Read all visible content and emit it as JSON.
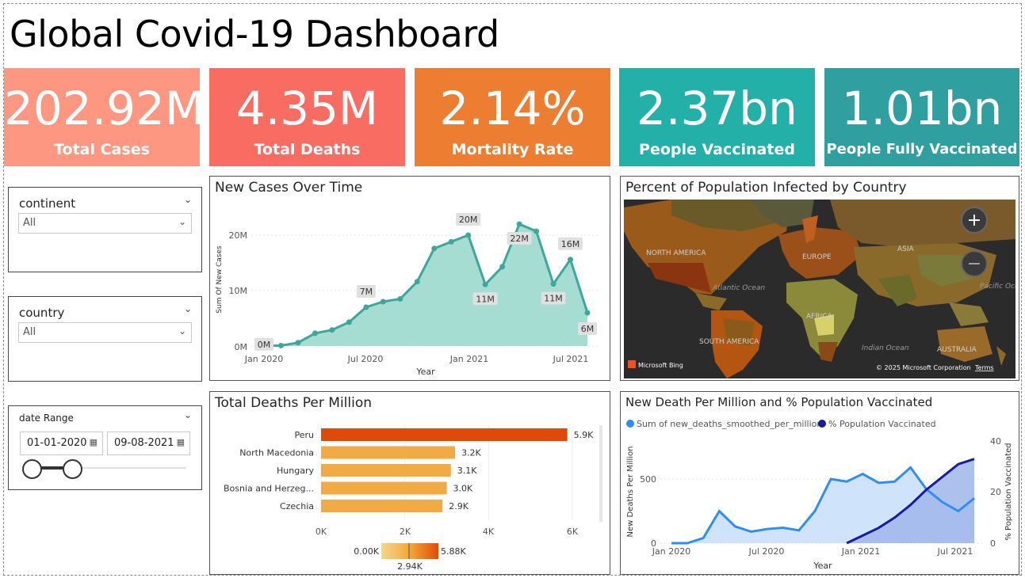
{
  "dashboard_title": "Global Covid-19 Dashboard",
  "kpis": [
    {
      "value": "202.92M",
      "label": "Total Cases",
      "color": "#fd9782"
    },
    {
      "value": "4.35M",
      "label": "Total Deaths",
      "color": "#f86c62"
    },
    {
      "value": "2.14%",
      "label": "Mortality Rate",
      "color": "#ed7d31"
    },
    {
      "value": "2.37bn",
      "label": "People Vaccinated",
      "color": "#23b0a8"
    },
    {
      "value": "1.01bn",
      "label": "People Fully Vaccinated",
      "color": "#2f9f9f"
    }
  ],
  "slicers": {
    "continent": {
      "label": "continent",
      "value": "All"
    },
    "country": {
      "label": "country",
      "value": "All"
    },
    "date_range": {
      "label": "date Range",
      "start": "01-01-2020",
      "end": "09-08-2021"
    }
  },
  "new_cases": {
    "title": "New Cases Over Time",
    "xlabel": "Year",
    "ylabel": "Sum Of New Cases",
    "xticks": [
      "Jan 2020",
      "Jul 2020",
      "Jan 2021",
      "Jul 2021"
    ],
    "yticks": [
      "0M",
      "10M",
      "20M"
    ]
  },
  "map": {
    "title": "Percent of Population Infected by Country",
    "labels": [
      "NORTH AMERICA",
      "EUROPE",
      "ASIA",
      "Atlantic Ocean",
      "AFRICA",
      "SOUTH AMERICA",
      "Indian Ocean",
      "AUSTRALIA",
      "Pacific Oce"
    ],
    "brand": "Microsoft Bing",
    "copyright": "© 2025 Microsoft Corporation",
    "terms": "Terms",
    "zoom_in": "+",
    "zoom_out": "−"
  },
  "deaths_per_million": {
    "title": "Total Deaths Per Million",
    "xticks": [
      "0K",
      "2K",
      "4K",
      "6K"
    ],
    "legend_min": "0.00K",
    "legend_mid": "2.94K",
    "legend_max": "5.88K"
  },
  "death_vax": {
    "title": "New Death Per Million and % Population Vaccinated",
    "legend": [
      {
        "name": "Sum of new_deaths_smoothed_per_million",
        "color": "#2f8ef0"
      },
      {
        "name": "% Population Vaccinated",
        "color": "#1a1a9c"
      }
    ],
    "xlabel": "Year",
    "ylabel_left": "New Deaths Per Million",
    "ylabel_right": "% Population Vaccinated",
    "xticks": [
      "Jan 2020",
      "Jul 2020",
      "Jan 2021",
      "Jul 2021"
    ],
    "yticks_left": [
      "0",
      "500"
    ],
    "yticks_right": [
      "0",
      "20",
      "40"
    ]
  },
  "chart_data": [
    {
      "type": "area",
      "title": "New Cases Over Time",
      "xlabel": "Year",
      "ylabel": "Sum Of New Cases",
      "x": [
        "2020-01",
        "2020-02",
        "2020-03",
        "2020-04",
        "2020-05",
        "2020-06",
        "2020-07",
        "2020-08",
        "2020-09",
        "2020-10",
        "2020-11",
        "2020-12",
        "2021-01",
        "2021-02",
        "2021-03",
        "2021-04",
        "2021-05",
        "2021-06",
        "2021-07",
        "2021-08"
      ],
      "values": [
        0.01,
        0.08,
        0.6,
        2.3,
        2.9,
        4.3,
        7.0,
        8.0,
        8.5,
        11.6,
        17.6,
        18.8,
        20.0,
        11.1,
        14.3,
        22.0,
        20.7,
        11.2,
        15.6,
        6.0
      ],
      "units": "M",
      "point_labels": {
        "0": "0M",
        "6": "7M",
        "12": "20M",
        "13": "11M",
        "15": "22M",
        "17": "11M",
        "18": "16M",
        "19": "6M"
      },
      "ylim": [
        0,
        23
      ],
      "color": "#3da79b"
    },
    {
      "type": "bar",
      "title": "Total Deaths Per Million",
      "categories": [
        "Peru",
        "North Macedonia",
        "Hungary",
        "Bosnia and Herzeg...",
        "Czechia"
      ],
      "values": [
        5.88,
        3.2,
        3.1,
        3.0,
        2.9
      ],
      "labels": [
        "5.9K",
        "3.2K",
        "3.1K",
        "3.0K",
        "2.9K"
      ],
      "units": "K",
      "xlim": [
        0,
        6
      ]
    },
    {
      "type": "line",
      "title": "New Death Per Million and % Population Vaccinated",
      "x": [
        "2020-01",
        "2020-02",
        "2020-03",
        "2020-04",
        "2020-05",
        "2020-06",
        "2020-07",
        "2020-08",
        "2020-09",
        "2020-10",
        "2020-11",
        "2020-12",
        "2021-01",
        "2021-02",
        "2021-03",
        "2021-04",
        "2021-05",
        "2021-06",
        "2021-07",
        "2021-08"
      ],
      "series": [
        {
          "name": "Sum of new_deaths_smoothed_per_million",
          "axis": "left",
          "values": [
            0,
            0,
            40,
            250,
            130,
            90,
            110,
            120,
            100,
            250,
            500,
            480,
            540,
            470,
            480,
            590,
            420,
            320,
            250,
            350
          ]
        },
        {
          "name": "% Population Vaccinated",
          "axis": "right",
          "values": [
            null,
            null,
            null,
            null,
            null,
            null,
            null,
            null,
            null,
            null,
            null,
            0,
            3,
            6,
            10,
            15,
            21,
            26,
            31,
            33
          ]
        }
      ],
      "ylim_left": [
        0,
        650
      ],
      "ylim_right": [
        0,
        40
      ]
    }
  ]
}
